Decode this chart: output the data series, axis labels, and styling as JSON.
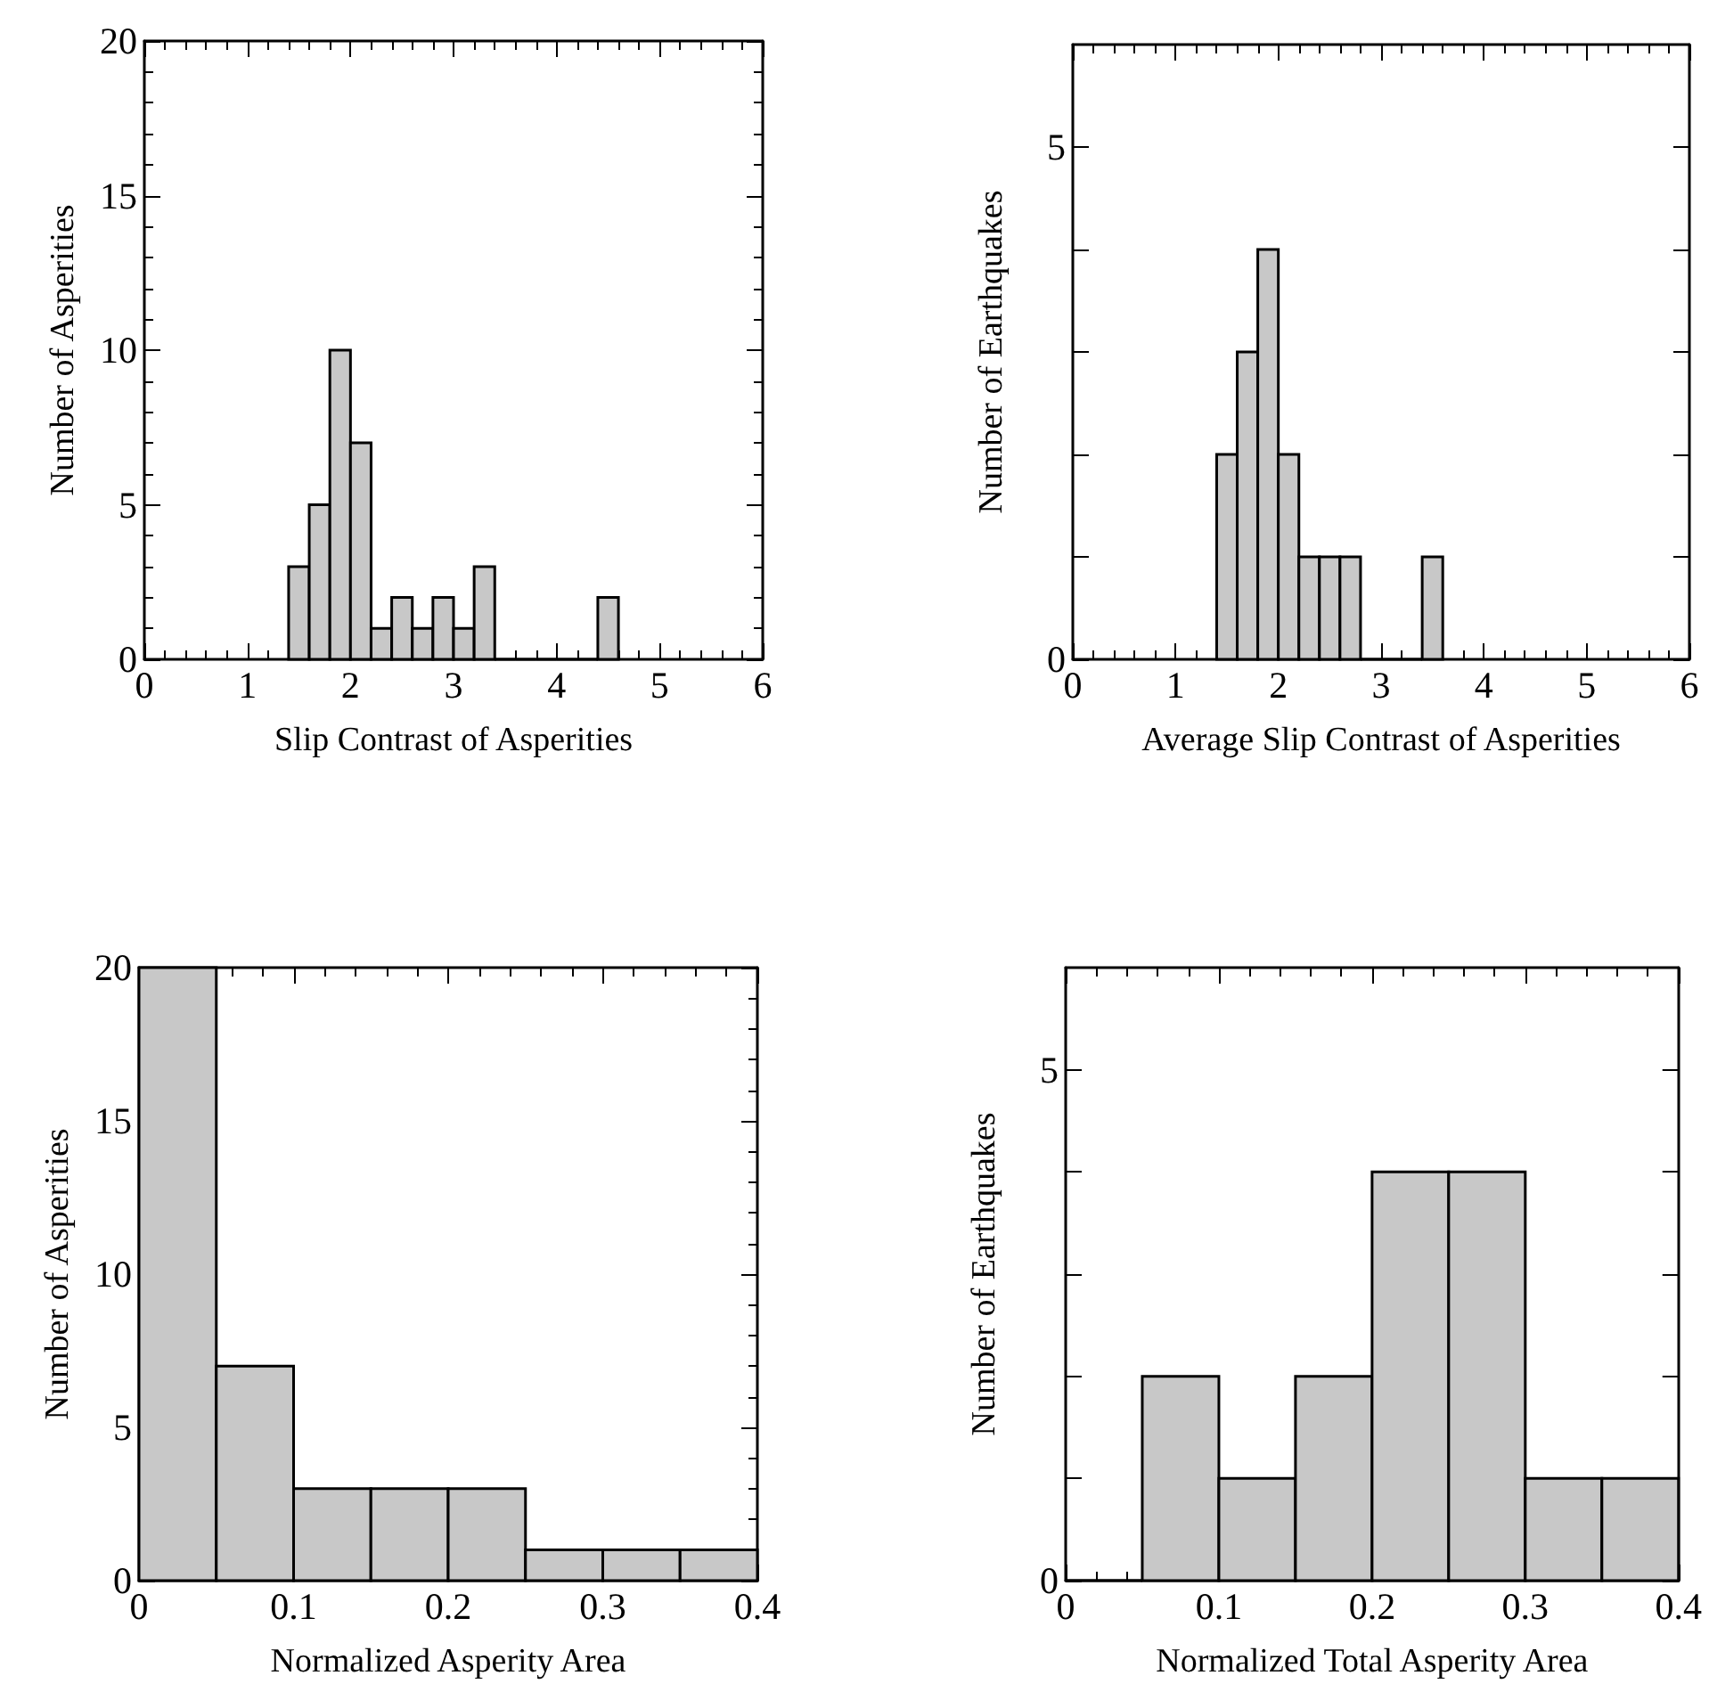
{
  "chart_data": [
    {
      "type": "histogram",
      "xlabel": "Slip Contrast of Asperities",
      "ylabel": "Number of Asperities",
      "bins": [
        1.4,
        1.6,
        1.8,
        2.0,
        2.2,
        2.4,
        2.6,
        2.8,
        3.0,
        3.2,
        3.4,
        3.6,
        3.8,
        4.0,
        4.2,
        4.4,
        4.6
      ],
      "values": [
        3,
        5,
        10,
        7,
        1,
        2,
        1,
        2,
        1,
        3,
        0,
        0,
        0,
        0,
        0,
        2
      ],
      "color": "#c8c8c8",
      "xlim": [
        0,
        6
      ],
      "xticks": [
        0,
        1,
        2,
        3,
        4,
        5,
        6
      ],
      "ylim": [
        0,
        20
      ],
      "yticks": [
        0,
        5,
        10,
        15,
        20
      ]
    },
    {
      "type": "histogram",
      "xlabel": "Average Slip Contrast of Asperities",
      "ylabel": "Number of Earthquakes",
      "bins": [
        1.4,
        1.6,
        1.8,
        2.0,
        2.2,
        2.4,
        2.6,
        2.8,
        3.0,
        3.2,
        3.4,
        3.6
      ],
      "values": [
        2,
        3,
        4,
        2,
        1,
        1,
        1,
        0,
        0,
        0,
        1
      ],
      "color": "#c8c8c8",
      "xlim": [
        0,
        6
      ],
      "xticks": [
        0,
        1,
        2,
        3,
        4,
        5,
        6
      ],
      "ylim": [
        0,
        6
      ],
      "yticks": [
        0,
        {
          "value": 1,
          "label": null
        },
        {
          "value": 2,
          "label": null
        },
        {
          "value": 3,
          "label": null
        },
        {
          "value": 4,
          "label": null
        },
        5
      ]
    },
    {
      "type": "histogram",
      "xlabel": "Normalized Asperity Area",
      "ylabel": "Number of Asperities",
      "bins": [
        0,
        0.05,
        0.1,
        0.15,
        0.2,
        0.25,
        0.3,
        0.35,
        0.4
      ],
      "values": [
        20,
        7,
        3,
        3,
        3,
        1,
        1,
        1
      ],
      "color": "#c8c8c8",
      "xlim": [
        0,
        0.4
      ],
      "xticks": [
        0,
        0.1,
        0.2,
        0.3,
        0.4
      ],
      "ylim": [
        0,
        20
      ],
      "yticks": [
        0,
        5,
        10,
        15,
        20
      ]
    },
    {
      "type": "histogram",
      "xlabel": "Normalized Total Asperity Area",
      "ylabel": "Number of Earthquakes",
      "bins": [
        0,
        0.05,
        0.1,
        0.15,
        0.2,
        0.25,
        0.3,
        0.35,
        0.4
      ],
      "values": [
        0,
        2,
        1,
        2,
        4,
        4,
        1,
        1
      ],
      "color": "#c8c8c8",
      "xlim": [
        0,
        0.4
      ],
      "xticks": [
        0,
        0.1,
        0.2,
        0.3,
        0.4
      ],
      "ylim": [
        0,
        6
      ],
      "yticks": [
        0,
        {
          "value": 1,
          "label": null
        },
        {
          "value": 2,
          "label": null
        },
        {
          "value": 3,
          "label": null
        },
        {
          "value": 4,
          "label": null
        },
        5
      ]
    }
  ]
}
